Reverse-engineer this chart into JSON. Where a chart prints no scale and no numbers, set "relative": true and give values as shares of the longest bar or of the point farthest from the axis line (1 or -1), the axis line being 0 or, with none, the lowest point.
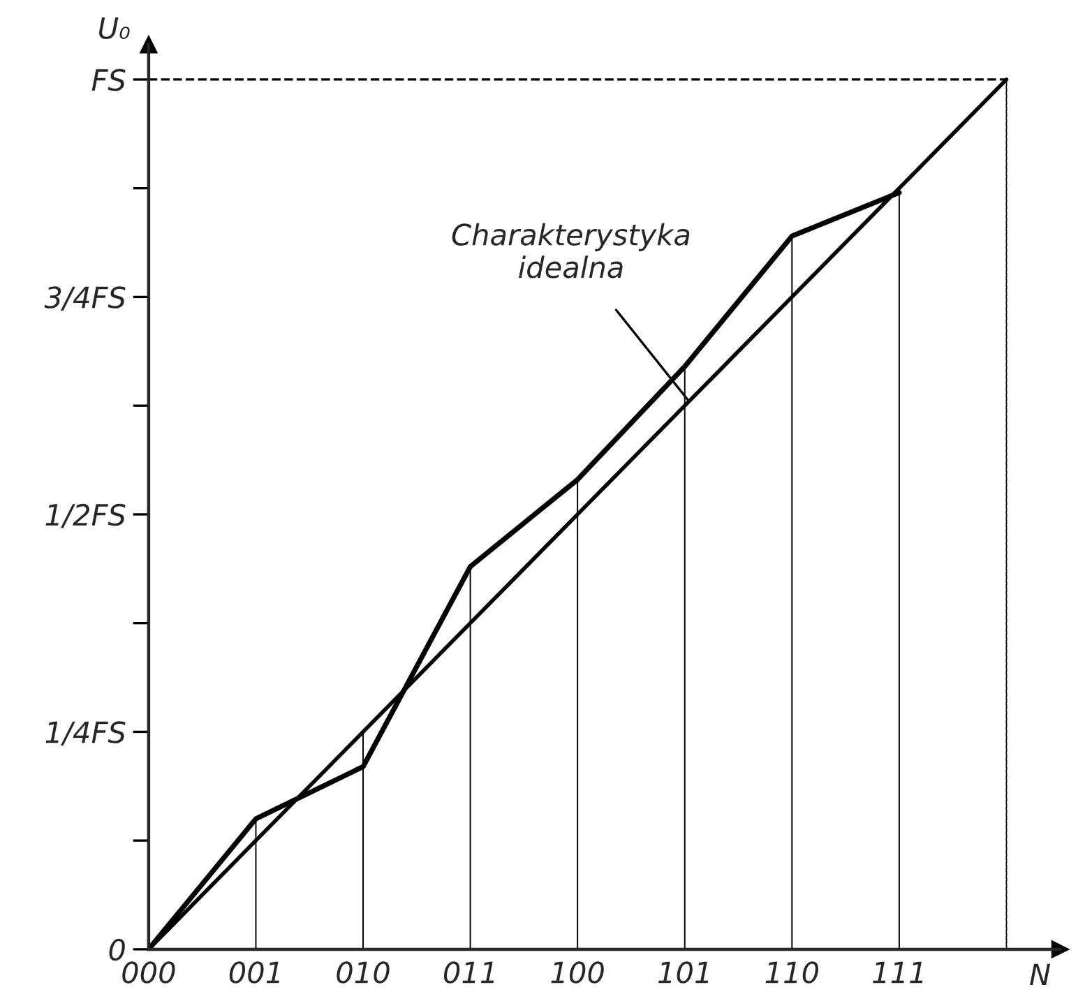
{
  "chart_data": {
    "type": "line",
    "xlabel": "N",
    "ylabel": "U₀",
    "categories": [
      "000",
      "001",
      "010",
      "011",
      "100",
      "101",
      "110",
      "111",
      null
    ],
    "series": [
      {
        "color": "#000000",
        "values": [
          0,
          0.15,
          0.21,
          0.44,
          0.54,
          0.67,
          0.82,
          0.87,
          null
        ]
      },
      {
        "name": "Charakterystyka\nidealna",
        "color": "#000000",
        "values": [
          0,
          0.125,
          0.25,
          0.375,
          0.5,
          0.625,
          0.75,
          0.875,
          1
        ]
      },
      {
        "type": "bar",
        "color": "#000000",
        "values": [
          null,
          0.15,
          0.25,
          0.44,
          0.54,
          0.67,
          0.82,
          0.875,
          1
        ]
      }
    ],
    "relative": true,
    "annotations": [
      "0",
      "1/4FS",
      "1/2FS",
      "3/4FS",
      "FS"
    ],
    "ref_lines": [
      {
        "axis": "y",
        "value": 1,
        "line_style": "dashed",
        "color": "#000000"
      }
    ],
    "grid": false,
    "legend": false,
    "marker": "none",
    "line_style": "solid"
  }
}
